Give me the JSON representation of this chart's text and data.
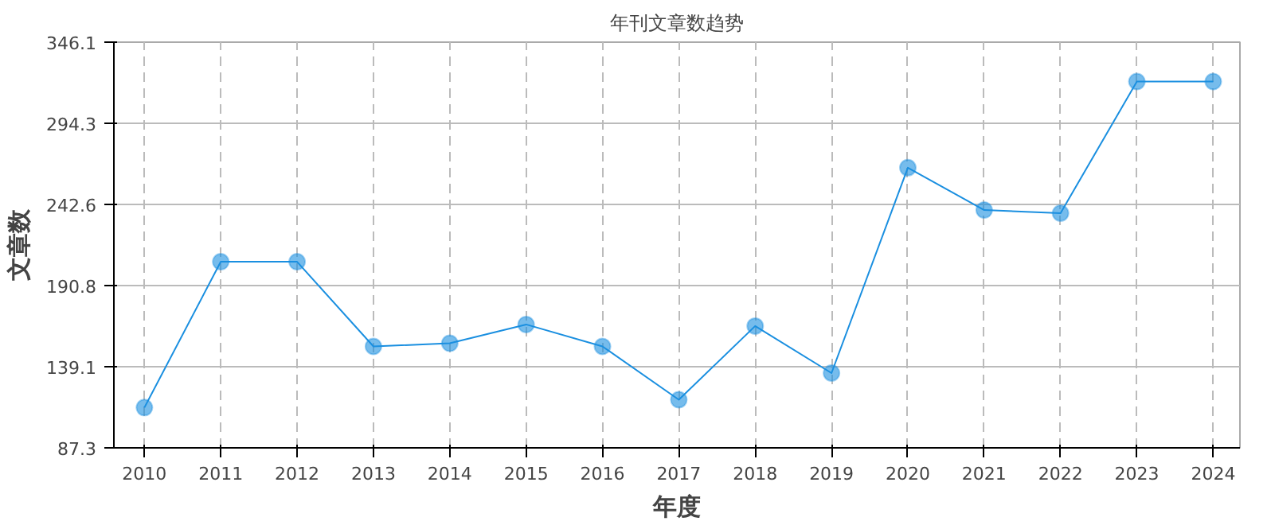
{
  "chart_data": {
    "type": "line",
    "title": "年刊文章数趋势",
    "xlabel": "年度",
    "ylabel": "文章数",
    "x": [
      2010,
      2011,
      2012,
      2013,
      2014,
      2015,
      2016,
      2017,
      2018,
      2019,
      2020,
      2021,
      2022,
      2023,
      2024
    ],
    "series": [
      {
        "color": "#1a8fe0",
        "values": [
          113,
          206,
          206,
          152,
          154,
          166,
          152,
          118,
          165,
          135,
          266,
          239,
          237,
          321,
          321
        ]
      }
    ],
    "xlim": [
      2009.6,
      2024.35
    ],
    "xticks": [
      2010,
      2011,
      2012,
      2013,
      2014,
      2015,
      2016,
      2017,
      2018,
      2019,
      2020,
      2021,
      2022,
      2023,
      2024
    ],
    "ylim": [
      87.3,
      346.1
    ],
    "yticks": [
      87.3,
      139.1,
      190.8,
      242.6,
      294.3,
      346.1
    ],
    "grid": true,
    "marker": "circle",
    "line_style": "solid"
  }
}
